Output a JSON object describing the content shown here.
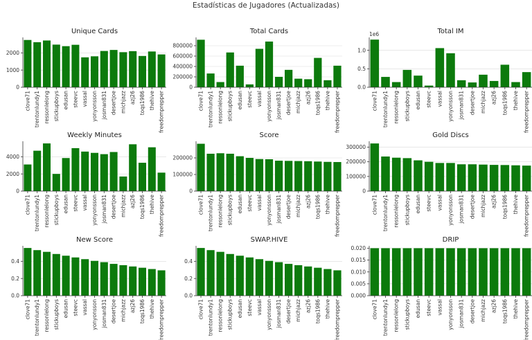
{
  "figure_title": "Estadísticas de Jugadores (Actualizadas)",
  "bar_color": "#0c7a0c",
  "chart_data": [
    {
      "type": "bar",
      "title": "Unique Cards",
      "categories": [
        "clove71",
        "trentonlundy1",
        "ressonlelong",
        "stickupboys",
        "edusan",
        "steevc",
        "vassal",
        "yonyonsson",
        "josman831",
        "desertjoe",
        "michjazz",
        "azj26",
        "toqs1986",
        "thehive",
        "freedomprepper"
      ],
      "values": [
        2750,
        2620,
        2720,
        2480,
        2390,
        2470,
        1740,
        1800,
        2110,
        2170,
        2040,
        2100,
        1820,
        2080,
        1910
      ],
      "ylim": [
        0,
        2900
      ],
      "yticks": [
        0,
        1000,
        2000
      ],
      "ytick_labels": [
        "0",
        "1000",
        "2000"
      ],
      "multiplier": ""
    },
    {
      "type": "bar",
      "title": "Total Cards",
      "categories": [
        "clove71",
        "trentonlundy1",
        "ressonlelong",
        "stickupboys",
        "edusan",
        "steevc",
        "vassal",
        "yonyonsson",
        "josman831",
        "desertjoe",
        "michjazz",
        "azj26",
        "toqs1986",
        "thehive",
        "freedomprepper"
      ],
      "values": [
        915000,
        265000,
        100000,
        670000,
        415000,
        55000,
        740000,
        880000,
        200000,
        335000,
        165000,
        155000,
        565000,
        135000,
        415000
      ],
      "ylim": [
        0,
        960000
      ],
      "yticks": [
        0,
        200000,
        400000,
        600000,
        800000
      ],
      "ytick_labels": [
        "0",
        "200000",
        "400000",
        "600000",
        "800000"
      ],
      "multiplier": ""
    },
    {
      "type": "bar",
      "title": "Total IM",
      "categories": [
        "clove71",
        "trentonlundy1",
        "ressonlelong",
        "stickupboys",
        "edusan",
        "steevc",
        "vassal",
        "yonyonsson",
        "josman831",
        "desertjoe",
        "michjazz",
        "azj26",
        "toqs1986",
        "thehive",
        "freedomprepper"
      ],
      "values": [
        1290000,
        280000,
        140000,
        470000,
        315000,
        45000,
        1060000,
        920000,
        190000,
        130000,
        340000,
        170000,
        610000,
        140000,
        410000
      ],
      "ylim": [
        0,
        1350000
      ],
      "yticks": [
        0,
        500000,
        1000000
      ],
      "ytick_labels": [
        "0.0",
        "0.5",
        "1.0"
      ],
      "multiplier": "1e6"
    },
    {
      "type": "bar",
      "title": "Weekly Minutes",
      "categories": [
        "clove71",
        "trentonlundy1",
        "ressonlelong",
        "stickupboys",
        "edusan",
        "steevc",
        "vassal",
        "yonyonsson",
        "josman831",
        "desertjoe",
        "michjazz",
        "azj26",
        "toqs1986",
        "thehive",
        "freedomprepper"
      ],
      "values": [
        3100,
        4700,
        5550,
        2000,
        3850,
        5000,
        4600,
        4450,
        4300,
        4550,
        1700,
        5450,
        3300,
        5100,
        2150
      ],
      "ylim": [
        0,
        5800
      ],
      "yticks": [
        0,
        2000,
        4000
      ],
      "ytick_labels": [
        "0",
        "2000",
        "4000"
      ],
      "multiplier": ""
    },
    {
      "type": "bar",
      "title": "Score",
      "categories": [
        "clove71",
        "trentonlundy1",
        "ressonlelong",
        "stickupboys",
        "edusan",
        "steevc",
        "vassal",
        "yonyonsson",
        "josman831",
        "desertjoe",
        "michjazz",
        "azj26",
        "toqs1986",
        "thehive",
        "freedomprepper"
      ],
      "values": [
        285000,
        225000,
        228000,
        225000,
        210000,
        200000,
        193000,
        192000,
        183000,
        182000,
        181000,
        180000,
        178000,
        176000,
        175000
      ],
      "ylim": [
        0,
        300000
      ],
      "yticks": [
        0,
        100000,
        200000
      ],
      "ytick_labels": [
        "0",
        "100000",
        "200000"
      ],
      "multiplier": ""
    },
    {
      "type": "bar",
      "title": "Gold Discs",
      "categories": [
        "clove71",
        "trentonlundy1",
        "ressonlelong",
        "stickupboys",
        "edusan",
        "steevc",
        "vassal",
        "yonyonsson",
        "josman831",
        "desertjoe",
        "michjazz",
        "azj26",
        "toqs1986",
        "thehive",
        "freedomprepper"
      ],
      "values": [
        325000,
        236000,
        228000,
        225000,
        210000,
        200000,
        192000,
        192000,
        183000,
        183000,
        181000,
        179000,
        178000,
        176000,
        174000
      ],
      "ylim": [
        0,
        340000
      ],
      "yticks": [
        0,
        100000,
        200000,
        300000
      ],
      "ytick_labels": [
        "0",
        "100000",
        "200000",
        "300000"
      ],
      "multiplier": ""
    },
    {
      "type": "bar",
      "title": "New Score",
      "categories": [
        "clove71",
        "trentonlundy1",
        "ressonlelong",
        "stickupboys",
        "edusan",
        "steevc",
        "vassal",
        "yonyonsson",
        "josman831",
        "desertjoe",
        "michjazz",
        "azj26",
        "toqs1986",
        "thehive",
        "freedomprepper"
      ],
      "values": [
        0.555,
        0.53,
        0.51,
        0.485,
        0.465,
        0.445,
        0.425,
        0.405,
        0.39,
        0.37,
        0.355,
        0.34,
        0.325,
        0.31,
        0.295
      ],
      "ylim": [
        0,
        0.58
      ],
      "yticks": [
        0,
        0.2,
        0.4
      ],
      "ytick_labels": [
        "0.0",
        "0.2",
        "0.4"
      ],
      "multiplier": ""
    },
    {
      "type": "bar",
      "title": "SWAP.HIVE",
      "categories": [
        "clove71",
        "trentonlundy1",
        "ressonlelong",
        "stickupboys",
        "edusan",
        "steevc",
        "vassal",
        "yonyonsson",
        "josman831",
        "desertjoe",
        "michjazz",
        "azj26",
        "toqs1986",
        "thehive",
        "freedomprepper"
      ],
      "values": [
        0.555,
        0.53,
        0.51,
        0.485,
        0.465,
        0.445,
        0.425,
        0.405,
        0.39,
        0.37,
        0.355,
        0.34,
        0.325,
        0.31,
        0.295
      ],
      "ylim": [
        0,
        0.58
      ],
      "yticks": [
        0,
        0.2,
        0.4
      ],
      "ytick_labels": [
        "0.0",
        "0.2",
        "0.4"
      ],
      "multiplier": ""
    },
    {
      "type": "bar",
      "title": "DRIP",
      "categories": [
        "clove71",
        "trentonlundy1",
        "ressonlelong",
        "stickupboys",
        "edusan",
        "steevc",
        "vassal",
        "yonyonsson",
        "josman831",
        "desertjoe",
        "michjazz",
        "azj26",
        "toqs1986",
        "thehive",
        "freedomprepper"
      ],
      "values": [
        0.02,
        0.02,
        0.02,
        0.02,
        0.02,
        0.02,
        0.02,
        0.02,
        0.02,
        0.02,
        0.02,
        0.02,
        0.02,
        0.02,
        0.02
      ],
      "ylim": [
        0,
        0.021
      ],
      "yticks": [
        0,
        0.005,
        0.01,
        0.015,
        0.02
      ],
      "ytick_labels": [
        "0.000",
        "0.005",
        "0.010",
        "0.015",
        "0.020"
      ],
      "multiplier": ""
    }
  ]
}
